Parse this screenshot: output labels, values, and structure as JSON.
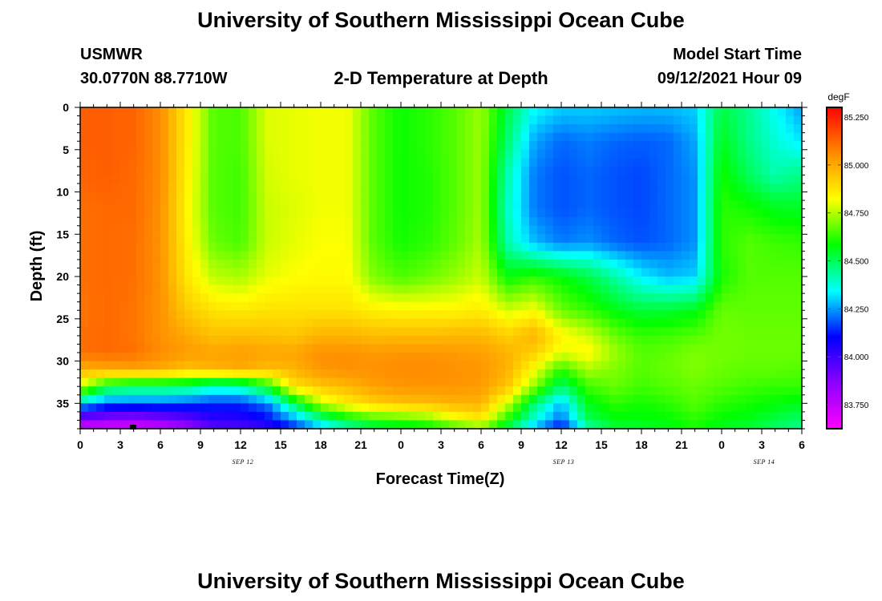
{
  "header": {
    "title": "University of Southern Mississippi Ocean Cube",
    "station": "USMWR",
    "location": "30.0770N  88.7710W",
    "subtitle": "2-D Temperature at Depth",
    "model_start_label": "Model Start Time",
    "model_start_value": "09/12/2021 Hour 09"
  },
  "footer": {
    "title": "University of Southern Mississippi Ocean Cube"
  },
  "chart_data": {
    "type": "heatmap",
    "title": "2-D Temperature at Depth",
    "xlabel": "Forecast Time(Z)",
    "ylabel": "Depth (ft)",
    "x_ticks": [
      "0",
      "3",
      "6",
      "9",
      "12",
      "15",
      "18",
      "21",
      "0",
      "3",
      "6",
      "9",
      "12",
      "15",
      "18",
      "21",
      "0",
      "3",
      "6"
    ],
    "x_range_hours": [
      0,
      54
    ],
    "date_labels": [
      {
        "label": "SEP 12",
        "hour": 12
      },
      {
        "label": "SEP 13",
        "hour": 36
      },
      {
        "label": "SEP 14",
        "hour": 51
      }
    ],
    "y_ticks": [
      0,
      5,
      10,
      15,
      20,
      25,
      30,
      35
    ],
    "ylim": [
      0,
      38
    ],
    "y_inverted": true,
    "colorbar": {
      "unit": "degF",
      "min": 83.625,
      "max": 85.3,
      "tick_labels": [
        "85.250",
        "85.000",
        "84.750",
        "84.500",
        "84.250",
        "84.000",
        "83.750"
      ],
      "tick_values": [
        85.25,
        85.0,
        84.75,
        84.5,
        84.25,
        84.0,
        83.75
      ],
      "colormap": [
        "#ff00ff",
        "#8c00ff",
        "#0000ff",
        "#00ffff",
        "#00ff00",
        "#ffff00",
        "#ff8c00",
        "#ff0000"
      ]
    },
    "grid_hours": [
      0,
      2,
      4,
      6,
      8,
      10,
      12,
      14,
      16,
      18,
      20,
      22,
      24,
      26,
      28,
      30,
      32,
      34,
      36,
      38,
      40,
      42,
      44,
      46,
      48,
      50,
      52,
      54
    ],
    "grid_depths": [
      0,
      4,
      8,
      12,
      16,
      20,
      24,
      27,
      29,
      31,
      33,
      35,
      37,
      38
    ],
    "values_degF": [
      [
        85.14,
        85.14,
        85.13,
        85.11,
        85.11,
        85.11,
        85.1,
        85.11,
        85.11,
        84.98,
        84.78,
        84.32,
        83.86,
        83.7
      ],
      [
        85.14,
        85.14,
        85.14,
        85.12,
        85.12,
        85.12,
        85.12,
        85.12,
        85.12,
        85.0,
        84.55,
        84.2,
        83.84,
        83.68
      ],
      [
        85.13,
        85.13,
        85.12,
        85.12,
        85.11,
        85.11,
        85.1,
        85.1,
        85.11,
        85.01,
        84.5,
        84.2,
        83.82,
        83.69
      ],
      [
        85.06,
        85.06,
        85.06,
        85.05,
        85.05,
        85.05,
        85.05,
        85.05,
        85.06,
        85.0,
        84.5,
        84.2,
        83.86,
        83.73
      ],
      [
        84.86,
        84.86,
        84.85,
        84.84,
        84.85,
        84.87,
        84.93,
        85.0,
        85.03,
        84.95,
        84.48,
        84.18,
        83.92,
        83.82
      ],
      [
        84.66,
        84.66,
        84.66,
        84.66,
        84.68,
        84.76,
        84.88,
        84.95,
        85.01,
        84.98,
        84.4,
        84.15,
        84.02,
        83.94
      ],
      [
        84.65,
        84.65,
        84.64,
        84.64,
        84.65,
        84.74,
        84.86,
        84.96,
        85.02,
        85.0,
        84.42,
        84.15,
        84.03,
        83.96
      ],
      [
        84.79,
        84.79,
        84.78,
        84.77,
        84.77,
        84.8,
        84.88,
        84.95,
        85.01,
        84.96,
        84.58,
        84.22,
        84.1,
        84.0
      ],
      [
        84.8,
        84.8,
        84.8,
        84.79,
        84.8,
        84.82,
        84.88,
        84.94,
        85.01,
        84.98,
        84.88,
        84.5,
        84.24,
        84.12
      ],
      [
        84.81,
        84.81,
        84.81,
        84.81,
        84.82,
        84.83,
        84.88,
        84.98,
        85.05,
        85.04,
        84.94,
        84.76,
        84.42,
        84.26
      ],
      [
        84.81,
        84.81,
        84.81,
        84.81,
        84.82,
        84.83,
        84.88,
        84.98,
        85.05,
        85.05,
        84.97,
        84.86,
        84.55,
        84.38
      ],
      [
        84.66,
        84.66,
        84.66,
        84.66,
        84.66,
        84.7,
        84.85,
        84.96,
        85.03,
        85.05,
        85.02,
        84.92,
        84.62,
        84.48
      ],
      [
        84.59,
        84.59,
        84.59,
        84.59,
        84.6,
        84.65,
        84.84,
        84.96,
        85.04,
        85.06,
        85.04,
        84.95,
        84.64,
        84.52
      ],
      [
        84.62,
        84.62,
        84.61,
        84.61,
        84.62,
        84.68,
        84.84,
        84.96,
        85.04,
        85.06,
        85.04,
        84.96,
        84.68,
        84.54
      ],
      [
        84.66,
        84.66,
        84.66,
        84.66,
        84.67,
        84.72,
        84.84,
        84.97,
        85.03,
        85.05,
        85.04,
        84.98,
        84.79,
        84.6
      ],
      [
        84.73,
        84.73,
        84.73,
        84.73,
        84.74,
        84.77,
        84.86,
        84.97,
        85.02,
        85.04,
        85.03,
        84.98,
        84.86,
        84.66
      ],
      [
        84.52,
        84.48,
        84.42,
        84.4,
        84.42,
        84.58,
        84.78,
        84.92,
        84.98,
        84.98,
        84.94,
        84.78,
        84.6,
        84.5
      ],
      [
        84.35,
        84.26,
        84.22,
        84.22,
        84.28,
        84.62,
        84.82,
        84.98,
        84.92,
        84.82,
        84.72,
        84.48,
        84.38,
        84.26
      ],
      [
        84.3,
        84.2,
        84.18,
        84.18,
        84.22,
        84.58,
        84.68,
        84.84,
        84.8,
        84.62,
        84.48,
        84.28,
        84.2,
        84.08
      ],
      [
        84.3,
        84.22,
        84.2,
        84.2,
        84.24,
        84.52,
        84.63,
        84.78,
        84.84,
        84.74,
        84.64,
        84.56,
        84.5,
        84.4
      ],
      [
        84.29,
        84.2,
        84.18,
        84.18,
        84.2,
        84.43,
        84.57,
        84.68,
        84.73,
        84.7,
        84.68,
        84.62,
        84.57,
        84.52
      ],
      [
        84.28,
        84.19,
        84.17,
        84.17,
        84.18,
        84.33,
        84.53,
        84.63,
        84.66,
        84.66,
        84.64,
        84.6,
        84.57,
        84.54
      ],
      [
        84.28,
        84.2,
        84.2,
        84.2,
        84.2,
        84.28,
        84.54,
        84.64,
        84.67,
        84.68,
        84.66,
        84.62,
        84.58,
        84.56
      ],
      [
        84.3,
        84.26,
        84.24,
        84.24,
        84.24,
        84.3,
        84.56,
        84.66,
        84.7,
        84.7,
        84.68,
        84.66,
        84.62,
        84.6
      ],
      [
        84.52,
        84.56,
        84.6,
        84.62,
        84.62,
        84.6,
        84.68,
        84.69,
        84.69,
        84.68,
        84.66,
        84.62,
        84.58,
        84.55
      ],
      [
        84.45,
        84.46,
        84.5,
        84.6,
        84.66,
        84.66,
        84.67,
        84.68,
        84.68,
        84.67,
        84.64,
        84.6,
        84.56,
        84.53
      ],
      [
        84.35,
        84.38,
        84.42,
        84.56,
        84.64,
        84.66,
        84.67,
        84.68,
        84.68,
        84.67,
        84.63,
        84.58,
        84.52,
        84.48
      ],
      [
        84.25,
        84.32,
        84.46,
        84.55,
        84.63,
        84.66,
        84.67,
        84.68,
        84.68,
        84.66,
        84.63,
        84.56,
        84.48,
        84.44
      ]
    ]
  }
}
